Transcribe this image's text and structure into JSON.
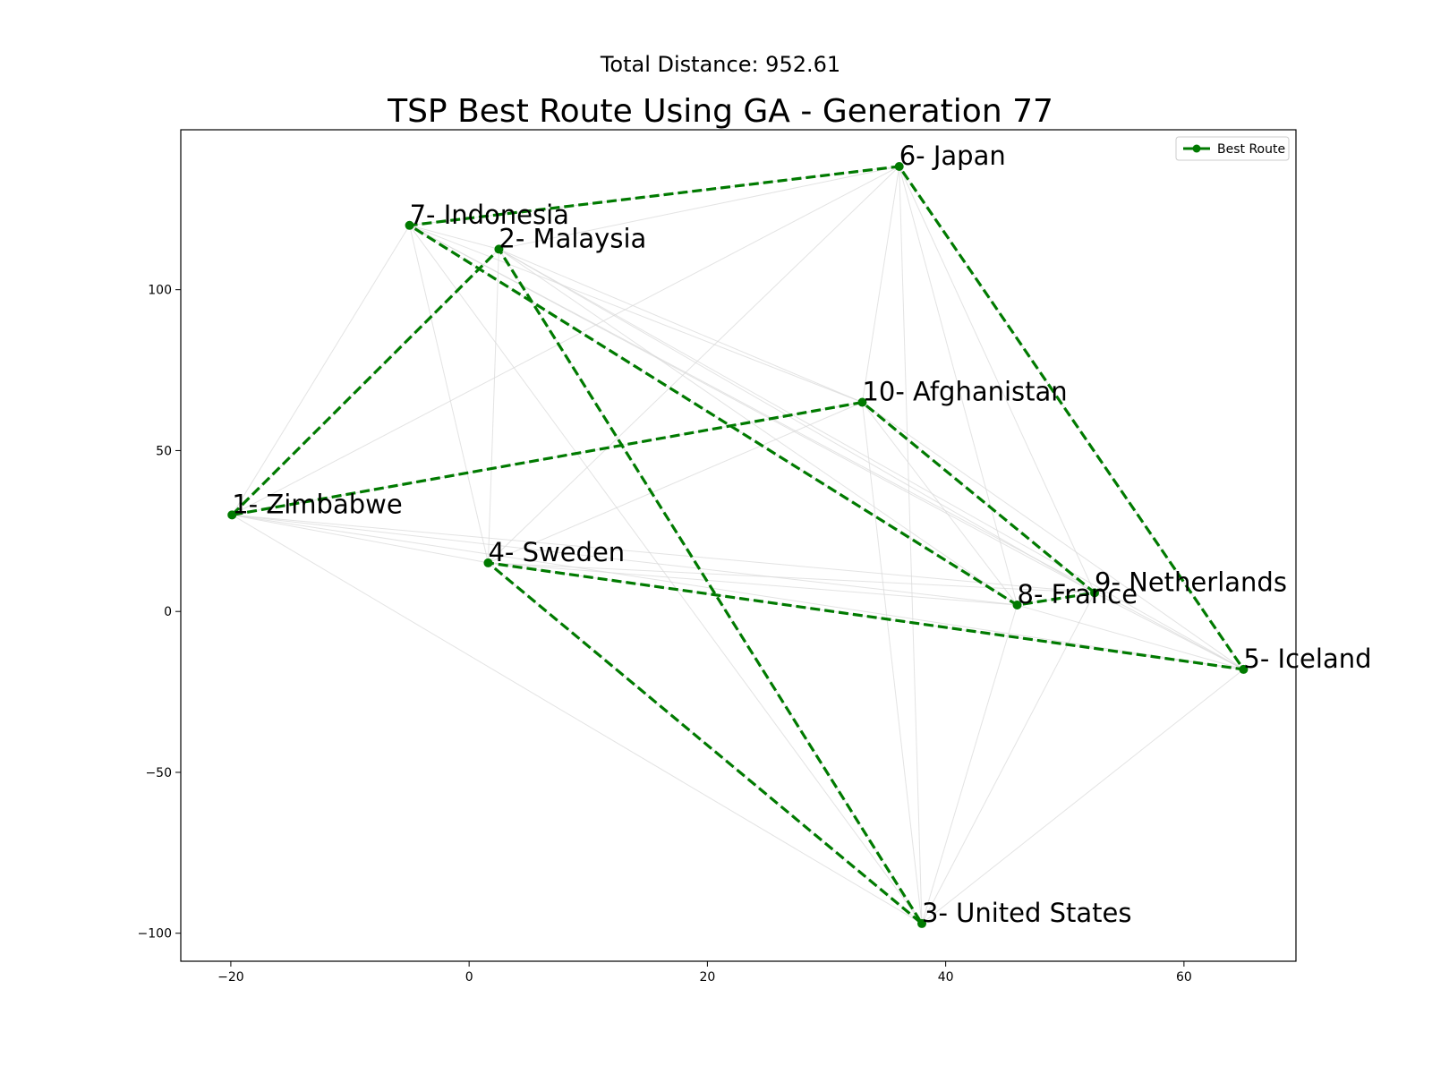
{
  "chart_data": {
    "type": "line",
    "suptitle": "Total Distance: 952.61",
    "title": "TSP Best Route Using GA - Generation 77",
    "xlabel": "",
    "ylabel": "",
    "xlim": [
      -24.2,
      69.4
    ],
    "ylim": [
      -108.7,
      149.7
    ],
    "xticks": [
      -20,
      0,
      20,
      40,
      60
    ],
    "xtick_labels": [
      "−20",
      "0",
      "20",
      "40",
      "60"
    ],
    "yticks": [
      -100,
      -50,
      0,
      50,
      100
    ],
    "ytick_labels": [
      "−100",
      "−50",
      "0",
      "50",
      "100"
    ],
    "grid": false,
    "legend_position": "top-right",
    "route_color": "#007a00",
    "background_edge_color": "#d9d9d9",
    "cities": [
      {
        "id": 1,
        "label": "1- Zimbabwe",
        "x": -19.9,
        "y": 30.0
      },
      {
        "id": 2,
        "label": "2- Malaysia",
        "x": 2.5,
        "y": 112.6
      },
      {
        "id": 3,
        "label": "3- United States",
        "x": 38.0,
        "y": -97.0
      },
      {
        "id": 4,
        "label": "4- Sweden",
        "x": 1.6,
        "y": 15.1
      },
      {
        "id": 5,
        "label": "5- Iceland",
        "x": 65.0,
        "y": -18.0
      },
      {
        "id": 6,
        "label": "6- Japan",
        "x": 36.1,
        "y": 138.3
      },
      {
        "id": 7,
        "label": "7- Indonesia",
        "x": -5.0,
        "y": 120.0
      },
      {
        "id": 8,
        "label": "8- France",
        "x": 46.0,
        "y": 2.0
      },
      {
        "id": 9,
        "label": "9- Netherlands",
        "x": 52.5,
        "y": 5.8
      },
      {
        "id": 10,
        "label": "10- Afghanistan",
        "x": 33.0,
        "y": 65.0
      }
    ],
    "series": [
      {
        "name": "Best Route",
        "route": [
          1,
          2,
          3,
          4,
          5,
          6,
          7,
          8,
          9,
          10,
          1
        ]
      }
    ]
  }
}
